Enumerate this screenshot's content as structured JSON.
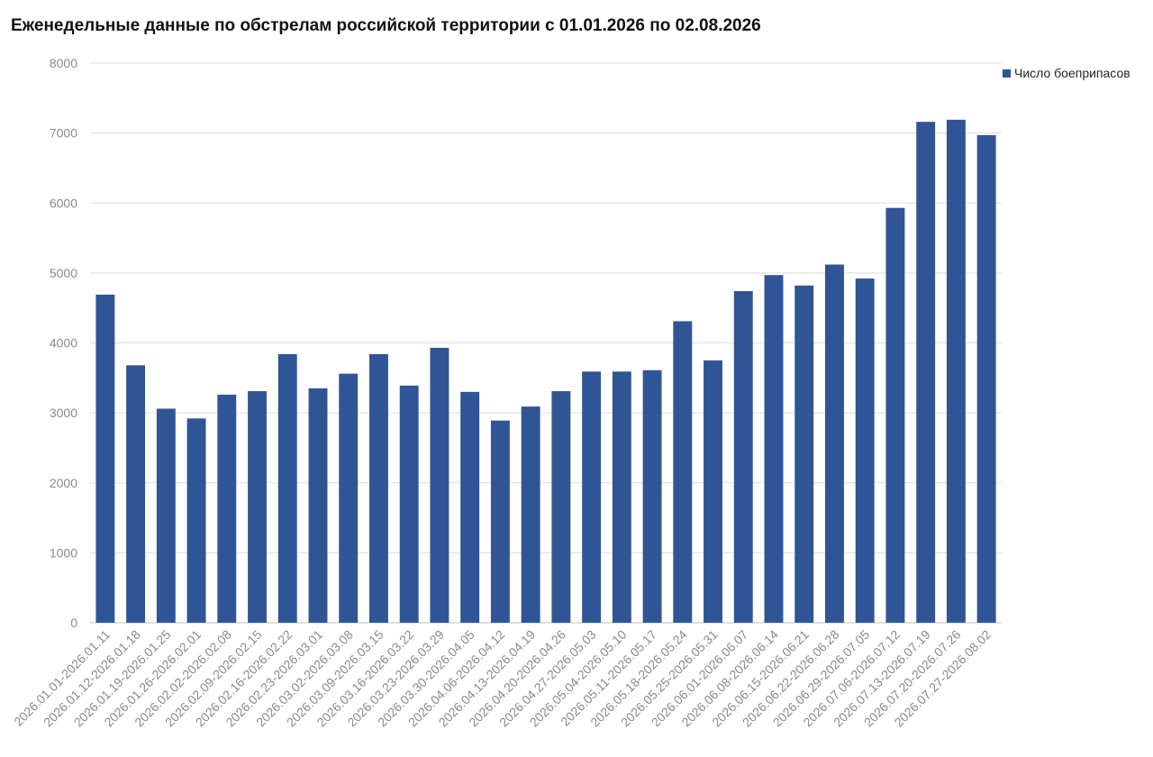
{
  "chart_data": {
    "type": "bar",
    "title": "Еженедельные данные по обстрелам российской территории с 01.01.2026 по 02.08.2026",
    "xlabel": "",
    "ylabel": "",
    "ylim": [
      0,
      8000
    ],
    "yticks": [
      0,
      1000,
      2000,
      3000,
      4000,
      5000,
      6000,
      7000,
      8000
    ],
    "grid": true,
    "legend_position": "top-right",
    "bar_color": "#2f5597",
    "categories": [
      "2026.01.01-2026.01.11",
      "2026.01.12-2026.01.18",
      "2026.01.19-2026.01.25",
      "2026.01.26-2026.02.01",
      "2026.02.02-2026.02.08",
      "2026.02.09-2026.02.15",
      "2026.02.16-2026.02.22",
      "2026.02.23-2026.03.01",
      "2026.03.02-2026.03.08",
      "2026.03.09-2026.03.15",
      "2026.03.16-2026.03.22",
      "2026.03.23-2026.03.29",
      "2026.03.30-2026.04.05",
      "2026.04.06-2026.04.12",
      "2026.04.13-2026.04.19",
      "2026.04.20-2026.04.26",
      "2026.04.27-2026.05.03",
      "2026.05.04-2026.05.10",
      "2026.05.11-2026.05.17",
      "2026.05.18-2026.05.24",
      "2026.05.25-2026.05.31",
      "2026.06.01-2026.06.07",
      "2026.06.08-2026.06.14",
      "2026.06.15-2026.06.21",
      "2026.06.22-2026.06.28",
      "2026.06.29-2026.07.05",
      "2026.07.06-2026.07.12",
      "2026.07.13-2026.07.19",
      "2026.07.20-2026.07.26",
      "2026.07.27-2026.08.02"
    ],
    "series": [
      {
        "name": "Число боеприпасов",
        "values": [
          4690,
          3680,
          3060,
          2920,
          3260,
          3310,
          3840,
          3350,
          3560,
          3840,
          3390,
          3930,
          3300,
          2890,
          3090,
          3310,
          3590,
          3590,
          3610,
          4310,
          3750,
          4740,
          4970,
          4820,
          5120,
          4920,
          5930,
          7160,
          7190,
          6970
        ]
      }
    ]
  }
}
